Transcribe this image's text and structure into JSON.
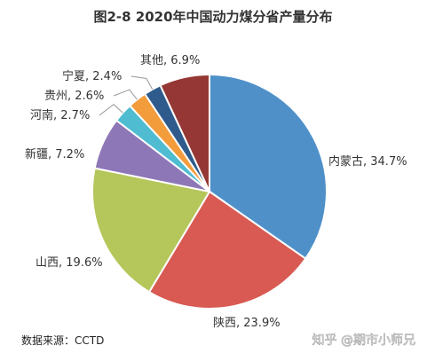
{
  "chart_data": {
    "type": "pie",
    "title": "图2-8 2020年中国动力煤分省产量分布",
    "unit": "%",
    "slices": [
      {
        "label": "内蒙古",
        "value": 34.7,
        "display": "内蒙古, 34.7%",
        "color": "#4f90c9"
      },
      {
        "label": "陕西",
        "value": 23.9,
        "display": "陕西, 23.9%",
        "color": "#d85a52"
      },
      {
        "label": "山西",
        "value": 19.6,
        "display": "山西, 19.6%",
        "color": "#b5c65a"
      },
      {
        "label": "新疆",
        "value": 7.2,
        "display": "新疆, 7.2%",
        "color": "#8e77b6"
      },
      {
        "label": "河南",
        "value": 2.7,
        "display": "河南, 2.7%",
        "color": "#4fbcd1"
      },
      {
        "label": "贵州",
        "value": 2.6,
        "display": "贵州, 2.6%",
        "color": "#f39c3c"
      },
      {
        "label": "宁夏",
        "value": 2.4,
        "display": "宁夏, 2.4%",
        "color": "#2e5b8c"
      },
      {
        "label": "其他",
        "value": 6.9,
        "display": "其他, 6.9%",
        "color": "#953734"
      }
    ],
    "legend": "none"
  },
  "source": "数据来源：CCTD",
  "watermark": "知乎 @期市小师兄"
}
